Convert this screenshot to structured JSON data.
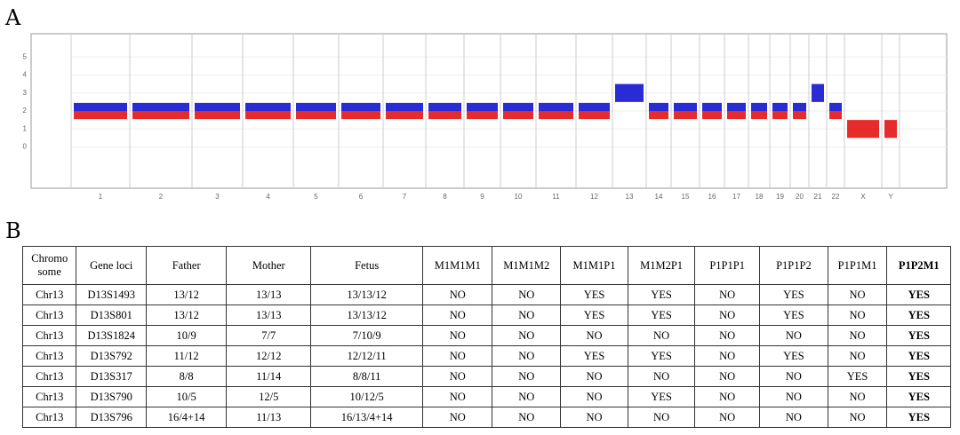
{
  "panel_labels": [
    "A",
    "B"
  ],
  "chart_data": {
    "type": "band",
    "categories": [
      "1",
      "2",
      "3",
      "4",
      "5",
      "6",
      "7",
      "8",
      "9",
      "10",
      "11",
      "12",
      "13",
      "14",
      "15",
      "16",
      "17",
      "18",
      "19",
      "20",
      "21",
      "22",
      "X",
      "Y"
    ],
    "values": [
      2,
      2,
      2,
      2,
      2,
      2,
      2,
      2,
      2,
      2,
      2,
      2,
      3,
      2,
      2,
      2,
      2,
      2,
      2,
      2,
      3,
      2,
      1,
      1
    ],
    "colors": [
      [
        "#1414d2",
        "#e41414"
      ],
      [
        "#1414d2",
        "#e41414"
      ],
      [
        "#1414d2",
        "#e41414"
      ],
      [
        "#1414d2",
        "#e41414"
      ],
      [
        "#1414d2",
        "#e41414"
      ],
      [
        "#1414d2",
        "#e41414"
      ],
      [
        "#1414d2",
        "#e41414"
      ],
      [
        "#1414d2",
        "#e41414"
      ],
      [
        "#1414d2",
        "#e41414"
      ],
      [
        "#1414d2",
        "#e41414"
      ],
      [
        "#1414d2",
        "#e41414"
      ],
      [
        "#1414d2",
        "#e41414"
      ],
      [
        "#1414d2"
      ],
      [
        "#1414d2",
        "#e41414"
      ],
      [
        "#1414d2",
        "#e41414"
      ],
      [
        "#1414d2",
        "#e41414"
      ],
      [
        "#1414d2",
        "#e41414"
      ],
      [
        "#1414d2",
        "#e41414"
      ],
      [
        "#1414d2",
        "#e41414"
      ],
      [
        "#1414d2",
        "#e41414"
      ],
      [
        "#1414d2"
      ],
      [
        "#1414d2",
        "#e41414"
      ],
      [
        "#e41414"
      ],
      [
        "#e41414"
      ]
    ],
    "ylim": [
      -2.3,
      6.3
    ],
    "yticks": [
      0,
      1,
      2,
      3,
      4,
      5
    ],
    "grid": true
  },
  "table": {
    "header": [
      "Chromo some",
      "Gene loci",
      "Father",
      "Mother",
      "Fetus",
      "M1M1M1",
      "M1M1M2",
      "M1M1P1",
      "M1M2P1",
      "P1P1P1",
      "P1P1P2",
      "P1P1M1",
      "P1P2M1"
    ],
    "rows": [
      [
        "Chr13",
        "D13S1493",
        "13/12",
        "13/13",
        "13/13/12",
        "NO",
        "NO",
        "YES",
        "YES",
        "NO",
        "YES",
        "NO",
        "YES"
      ],
      [
        "Chr13",
        "D13S801",
        "13/12",
        "13/13",
        "13/13/12",
        "NO",
        "NO",
        "YES",
        "YES",
        "NO",
        "YES",
        "NO",
        "YES"
      ],
      [
        "Chr13",
        "D13S1824",
        "10/9",
        "7/7",
        "7/10/9",
        "NO",
        "NO",
        "NO",
        "NO",
        "NO",
        "NO",
        "NO",
        "YES"
      ],
      [
        "Chr13",
        "D13S792",
        "11/12",
        "12/12",
        "12/12/11",
        "NO",
        "NO",
        "YES",
        "YES",
        "NO",
        "YES",
        "NO",
        "YES"
      ],
      [
        "Chr13",
        "D13S317",
        "8/8",
        "11/14",
        "8/8/11",
        "NO",
        "NO",
        "NO",
        "NO",
        "NO",
        "NO",
        "YES",
        "YES"
      ],
      [
        "Chr13",
        "D13S790",
        "10/5",
        "12/5",
        "10/12/5",
        "NO",
        "NO",
        "NO",
        "YES",
        "NO",
        "NO",
        "NO",
        "YES"
      ],
      [
        "Chr13",
        "D13S796",
        "16/4+14",
        "11/13",
        "16/13/4+14",
        "NO",
        "NO",
        "NO",
        "NO",
        "NO",
        "NO",
        "NO",
        "YES"
      ]
    ]
  }
}
